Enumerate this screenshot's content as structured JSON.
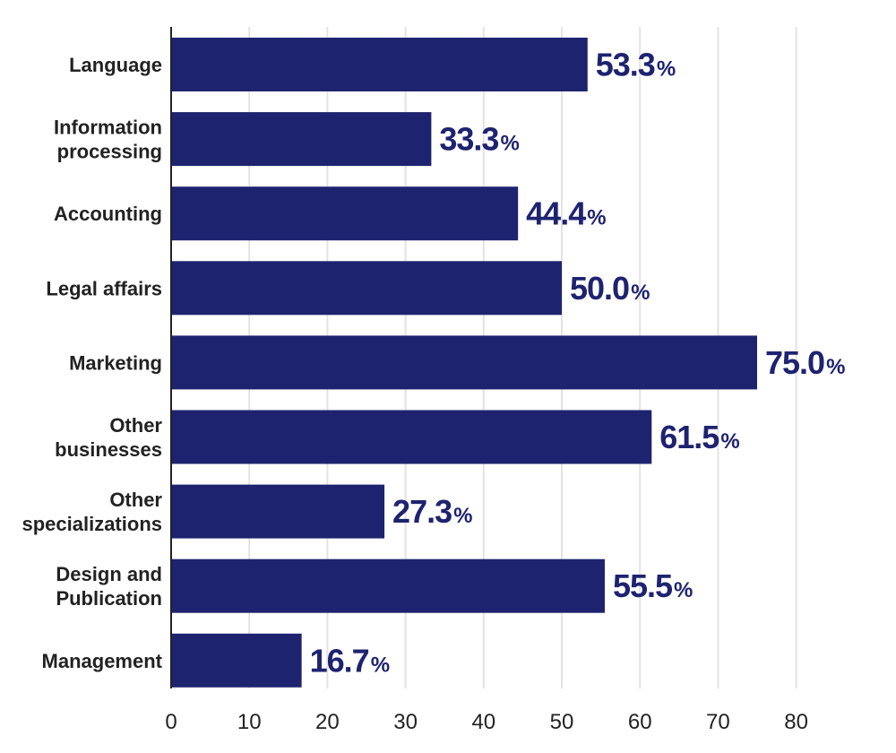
{
  "chart_data": {
    "type": "bar",
    "orientation": "horizontal",
    "categories": [
      [
        "Language"
      ],
      [
        "Information",
        "processing"
      ],
      [
        "Accounting"
      ],
      [
        "Legal affairs"
      ],
      [
        "Marketing"
      ],
      [
        "Other",
        "businesses"
      ],
      [
        "Other",
        "specializations"
      ],
      [
        "Design and",
        "Publication"
      ],
      [
        "Management"
      ]
    ],
    "values": [
      53.3,
      33.3,
      44.4,
      50.0,
      75.0,
      61.5,
      27.3,
      55.5,
      16.7
    ],
    "value_labels": [
      "53.3",
      "33.3",
      "44.4",
      "50.0",
      "75.0",
      "61.5",
      "27.3",
      "55.5",
      "16.7"
    ],
    "value_unit": "%",
    "xlim": [
      0,
      80
    ],
    "xticks": [
      "0",
      "10",
      "20",
      "30",
      "40",
      "50",
      "60",
      "70",
      "80"
    ],
    "grid": "vertical",
    "title": "",
    "xlabel": "",
    "ylabel": "",
    "colors": {
      "bar": "#1e2370",
      "label": "#1e2370",
      "grid": "#e3e3e3",
      "axis": "#222222"
    }
  }
}
